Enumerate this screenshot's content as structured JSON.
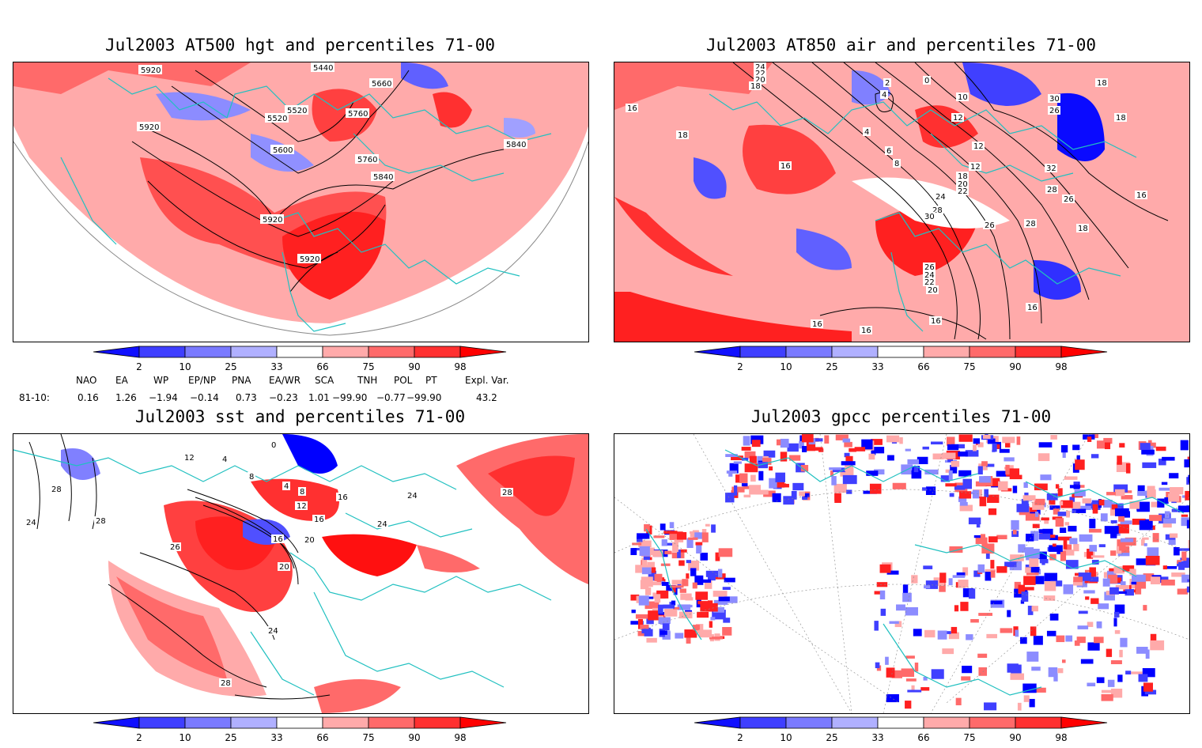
{
  "panels": [
    {
      "title": "Jul2003 AT500 hgt and percentiles 71-00",
      "contour_labels": [
        "5920",
        "5440",
        "5660",
        "5520",
        "5520",
        "5760",
        "5600",
        "5760",
        "5840",
        "5840",
        "5920",
        "5920",
        "5920"
      ]
    },
    {
      "title": "Jul2003 AT850 air and percentiles 71-00",
      "contour_labels": [
        "24",
        "22",
        "20",
        "18",
        "16",
        "18",
        "2",
        "0",
        "4",
        "12",
        "10",
        "12",
        "4",
        "6",
        "8",
        "12",
        "18",
        "20",
        "22",
        "24",
        "28",
        "30",
        "16",
        "26",
        "28",
        "18",
        "32",
        "30",
        "26",
        "28",
        "26",
        "16",
        "18",
        "26",
        "24",
        "22",
        "20",
        "16",
        "16",
        "16",
        "16",
        "18"
      ]
    },
    {
      "title": "Jul2003 sst and percentiles 71-00",
      "contour_labels": [
        "12",
        "0",
        "4",
        "4",
        "8",
        "8",
        "12",
        "16",
        "16",
        "20",
        "24",
        "24",
        "28",
        "28",
        "24",
        "20",
        "16",
        "26",
        "24",
        "28",
        "28"
      ]
    },
    {
      "title": "Jul2003 gpcc percentiles 71-00",
      "contour_labels": []
    }
  ],
  "colorbar": {
    "ticks": [
      "2",
      "10",
      "25",
      "33",
      "66",
      "75",
      "90",
      "98"
    ],
    "colors": [
      "#1010ff",
      "#3f3fff",
      "#7a7aff",
      "#b0b0ff",
      "#ffffff",
      "#ffaaaa",
      "#ff6a6a",
      "#ff3030",
      "#ff0000"
    ]
  },
  "indices": {
    "headers": [
      "NAO",
      "EA",
      "WP",
      "EP/NP",
      "PNA",
      "EA/WR",
      "SCA",
      "TNH",
      "POL",
      "PT",
      "Expl. Var."
    ],
    "row_label": "81-10:",
    "values": [
      "0.16",
      "1.26",
      "−1.94",
      "−0.14",
      "0.73",
      "−0.23",
      "1.01",
      "−99.90",
      "−0.77",
      "−99.90",
      "43.2"
    ]
  },
  "style": {
    "coast": "#20c0c0",
    "contour": "#000000"
  }
}
